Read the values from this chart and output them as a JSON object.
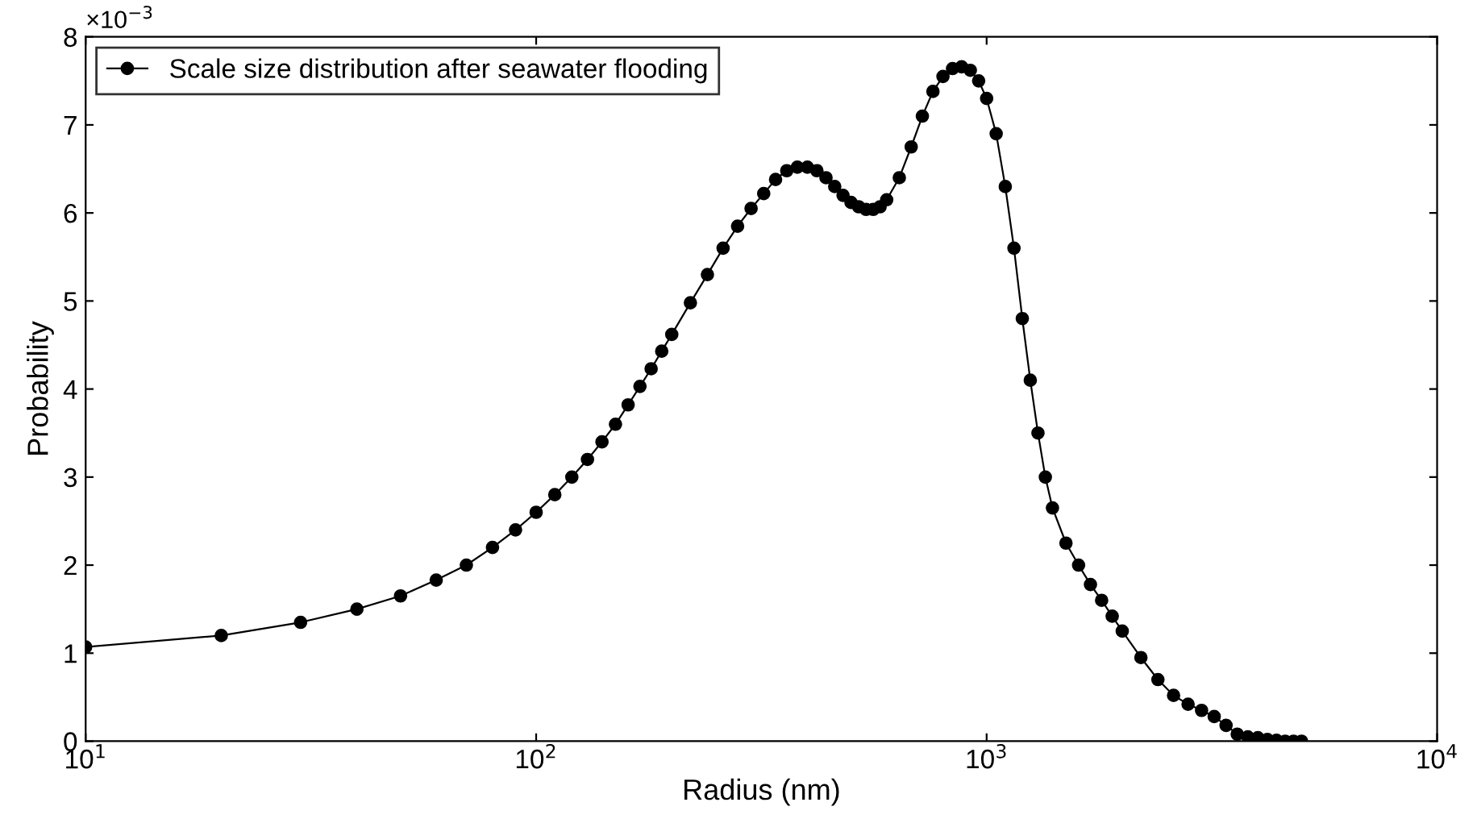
{
  "chart_data": {
    "type": "line",
    "xlabel": "Radius (nm)",
    "ylabel": "Probability",
    "log": "x",
    "xlim": [
      10,
      10000
    ],
    "xticks": [
      {
        "value": 10,
        "label": "10$^{1}$"
      },
      {
        "value": 100,
        "label": "10$^{2}$"
      },
      {
        "value": 1000,
        "label": "10$^{3}$"
      },
      {
        "value": 10000,
        "label": "10$^{4}$"
      }
    ],
    "ylim": [
      0,
      8
    ],
    "yticks": [
      0,
      1,
      2,
      3,
      4,
      5,
      6,
      7,
      8
    ],
    "annotations": [
      "×10$^{−3}$"
    ],
    "legend": "top left",
    "marker": "circle",
    "line_style": "solid",
    "grid": false,
    "series": [
      {
        "name": "Scale size distribution after seawater flooding",
        "color": "#000000",
        "x": [
          10,
          20,
          30,
          40,
          50,
          60,
          70,
          80,
          90,
          100,
          110,
          120,
          130,
          140,
          150,
          160,
          170,
          180,
          190,
          200,
          220,
          240,
          260,
          280,
          300,
          320,
          340,
          360,
          380,
          400,
          420,
          440,
          460,
          480,
          500,
          520,
          540,
          560,
          580,
          600,
          640,
          680,
          720,
          760,
          800,
          840,
          880,
          920,
          960,
          1000,
          1050,
          1100,
          1150,
          1200,
          1250,
          1300,
          1350,
          1400,
          1500,
          1600,
          1700,
          1800,
          1900,
          2000,
          2200,
          2400,
          2600,
          2800,
          3000,
          3200,
          3400,
          3600,
          3800,
          4000,
          4200,
          4400,
          4600,
          4800,
          5000
        ],
        "values": [
          1.07,
          1.2,
          1.35,
          1.5,
          1.65,
          1.83,
          2.0,
          2.2,
          2.4,
          2.6,
          2.8,
          3.0,
          3.2,
          3.4,
          3.6,
          3.82,
          4.03,
          4.23,
          4.43,
          4.62,
          4.98,
          5.3,
          5.6,
          5.85,
          6.05,
          6.22,
          6.38,
          6.48,
          6.52,
          6.52,
          6.48,
          6.4,
          6.3,
          6.2,
          6.12,
          6.07,
          6.04,
          6.04,
          6.07,
          6.15,
          6.4,
          6.75,
          7.1,
          7.38,
          7.55,
          7.64,
          7.66,
          7.62,
          7.5,
          7.3,
          6.9,
          6.3,
          5.6,
          4.8,
          4.1,
          3.5,
          3.0,
          2.65,
          2.25,
          2.0,
          1.78,
          1.6,
          1.42,
          1.25,
          0.95,
          0.7,
          0.52,
          0.42,
          0.35,
          0.28,
          0.18,
          0.08,
          0.05,
          0.04,
          0.02,
          0.01,
          0,
          0,
          0
        ]
      }
    ]
  }
}
